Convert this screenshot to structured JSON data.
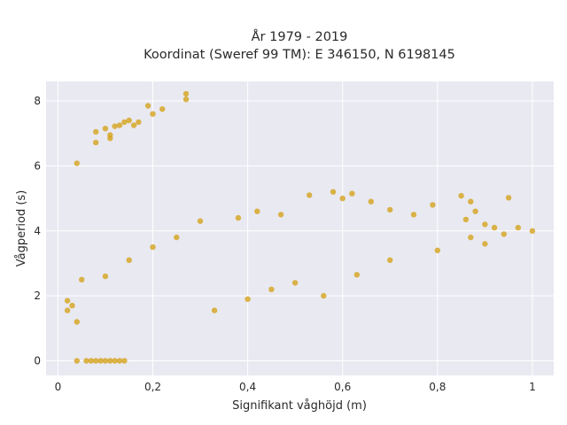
{
  "chart_data": {
    "type": "scatter",
    "title_lines": [
      "År 1979 - 2019",
      "Koordinat (Sweref 99 TM): E 346150, N 6198145"
    ],
    "xlabel": "Signifikant våghöjd (m)",
    "ylabel": "Vågperiod (s)",
    "xlim": [
      -0.025,
      1.045
    ],
    "ylim": [
      -0.45,
      8.6
    ],
    "x_ticks": [
      0,
      0.2,
      0.4,
      0.6,
      0.8,
      1
    ],
    "x_tick_labels": [
      "0",
      "0,2",
      "0,4",
      "0,6",
      "0,8",
      "1"
    ],
    "y_ticks": [
      0,
      2,
      4,
      6,
      8
    ],
    "y_tick_labels": [
      "0",
      "2",
      "4",
      "6",
      "8"
    ],
    "grid": true,
    "background": "#e9e9f1",
    "marker_color": "#d4a31d",
    "series": [
      {
        "points": [
          [
            0.04,
            6.08
          ],
          [
            0.08,
            6.72
          ],
          [
            0.08,
            7.05
          ],
          [
            0.1,
            7.15
          ],
          [
            0.11,
            6.95
          ],
          [
            0.11,
            6.85
          ],
          [
            0.12,
            7.22
          ],
          [
            0.13,
            7.25
          ],
          [
            0.14,
            7.35
          ],
          [
            0.15,
            7.4
          ],
          [
            0.16,
            7.25
          ],
          [
            0.17,
            7.35
          ],
          [
            0.19,
            7.85
          ],
          [
            0.2,
            7.6
          ],
          [
            0.22,
            7.75
          ],
          [
            0.27,
            8.22
          ],
          [
            0.27,
            8.05
          ],
          [
            0.04,
            0.0
          ],
          [
            0.06,
            0.0
          ],
          [
            0.07,
            0.0
          ],
          [
            0.08,
            0.0
          ],
          [
            0.09,
            0.0
          ],
          [
            0.1,
            0.0
          ],
          [
            0.11,
            0.0
          ],
          [
            0.12,
            0.0
          ],
          [
            0.13,
            0.0
          ],
          [
            0.14,
            0.0
          ],
          [
            0.38,
            4.4
          ],
          [
            0.42,
            4.6
          ],
          [
            0.47,
            4.5
          ],
          [
            0.53,
            5.1
          ],
          [
            0.58,
            5.2
          ],
          [
            0.6,
            5.0
          ],
          [
            0.62,
            5.15
          ],
          [
            0.66,
            4.9
          ],
          [
            0.7,
            4.65
          ],
          [
            0.75,
            4.5
          ],
          [
            0.79,
            4.8
          ],
          [
            0.85,
            5.08
          ],
          [
            0.86,
            4.35
          ],
          [
            0.87,
            4.9
          ],
          [
            0.88,
            4.6
          ],
          [
            0.9,
            4.2
          ],
          [
            0.95,
            5.02
          ],
          [
            0.92,
            4.1
          ],
          [
            0.94,
            3.9
          ],
          [
            0.97,
            4.1
          ],
          [
            1.0,
            4.0
          ],
          [
            0.9,
            3.6
          ],
          [
            0.87,
            3.8
          ],
          [
            0.02,
            1.55
          ],
          [
            0.03,
            1.7
          ],
          [
            0.02,
            1.85
          ],
          [
            0.04,
            1.2
          ],
          [
            0.05,
            2.5
          ],
          [
            0.1,
            2.6
          ],
          [
            0.15,
            3.1
          ],
          [
            0.2,
            3.5
          ],
          [
            0.25,
            3.8
          ],
          [
            0.3,
            4.3
          ],
          [
            0.33,
            1.55
          ],
          [
            0.4,
            1.9
          ],
          [
            0.45,
            2.2
          ],
          [
            0.5,
            2.4
          ],
          [
            0.56,
            2.0
          ],
          [
            0.63,
            2.65
          ],
          [
            0.7,
            3.1
          ],
          [
            0.8,
            3.4
          ]
        ]
      }
    ]
  }
}
